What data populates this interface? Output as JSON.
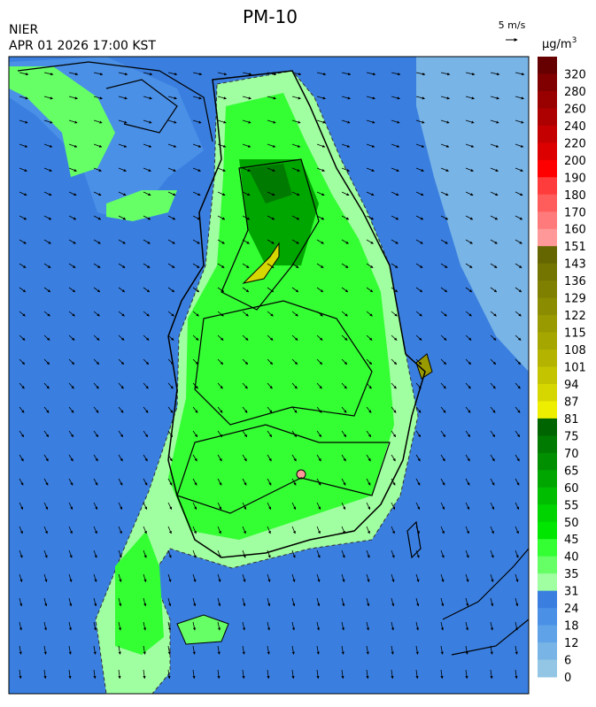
{
  "header": {
    "title": "PM-10",
    "agency": "NIER",
    "datetime": "APR 01 2026 17:00 KST",
    "wind_scale": "5 m/s"
  },
  "legend": {
    "unit": "μg/m",
    "unit_superscript": "3",
    "labels": [
      320,
      280,
      260,
      240,
      220,
      200,
      190,
      180,
      170,
      160,
      151,
      143,
      136,
      129,
      122,
      115,
      108,
      101,
      94,
      87,
      81,
      75,
      70,
      65,
      60,
      55,
      50,
      45,
      40,
      35,
      31,
      24,
      18,
      12,
      6,
      0
    ],
    "colors": [
      "#660000",
      "#800000",
      "#990000",
      "#ad0000",
      "#c40000",
      "#dc0000",
      "#ff0000",
      "#ff3c3c",
      "#ff5c5c",
      "#ff7a7a",
      "#ff9999",
      "#666600",
      "#747400",
      "#808000",
      "#8c8c00",
      "#999900",
      "#a6a600",
      "#b3b300",
      "#c4c400",
      "#d6d600",
      "#eeee00",
      "#006400",
      "#007a00",
      "#008f00",
      "#00a600",
      "#00bd00",
      "#00d400",
      "#00e600",
      "#33ff33",
      "#66ff66",
      "#a0ffa0",
      "#3a7fe0",
      "#4a90e6",
      "#5fa2e8",
      "#78b4e6",
      "#92c6e4"
    ]
  }
}
